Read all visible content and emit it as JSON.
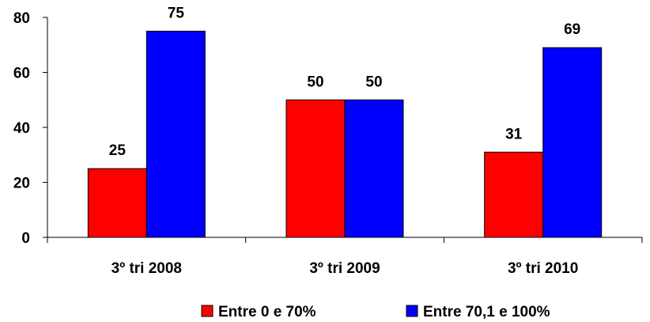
{
  "chart_data": {
    "type": "bar",
    "categories": [
      "3º tri 2008",
      "3º tri 2009",
      "3º tri 2010"
    ],
    "series": [
      {
        "name": "Entre 0 e 70%",
        "values": [
          25,
          50,
          31
        ],
        "color": "#ff0000"
      },
      {
        "name": "Entre 70,1 e 100%",
        "values": [
          75,
          50,
          69
        ],
        "color": "#0000ff"
      }
    ],
    "data_labels": [
      [
        "25",
        "50",
        "31"
      ],
      [
        "75",
        "50",
        "69"
      ]
    ],
    "ylim": [
      0,
      80
    ],
    "yticks": [
      0,
      20,
      40,
      60,
      80
    ],
    "ytick_labels": [
      "0",
      "20",
      "40",
      "60",
      "80"
    ],
    "grid": false,
    "legend_position": "bottom"
  }
}
